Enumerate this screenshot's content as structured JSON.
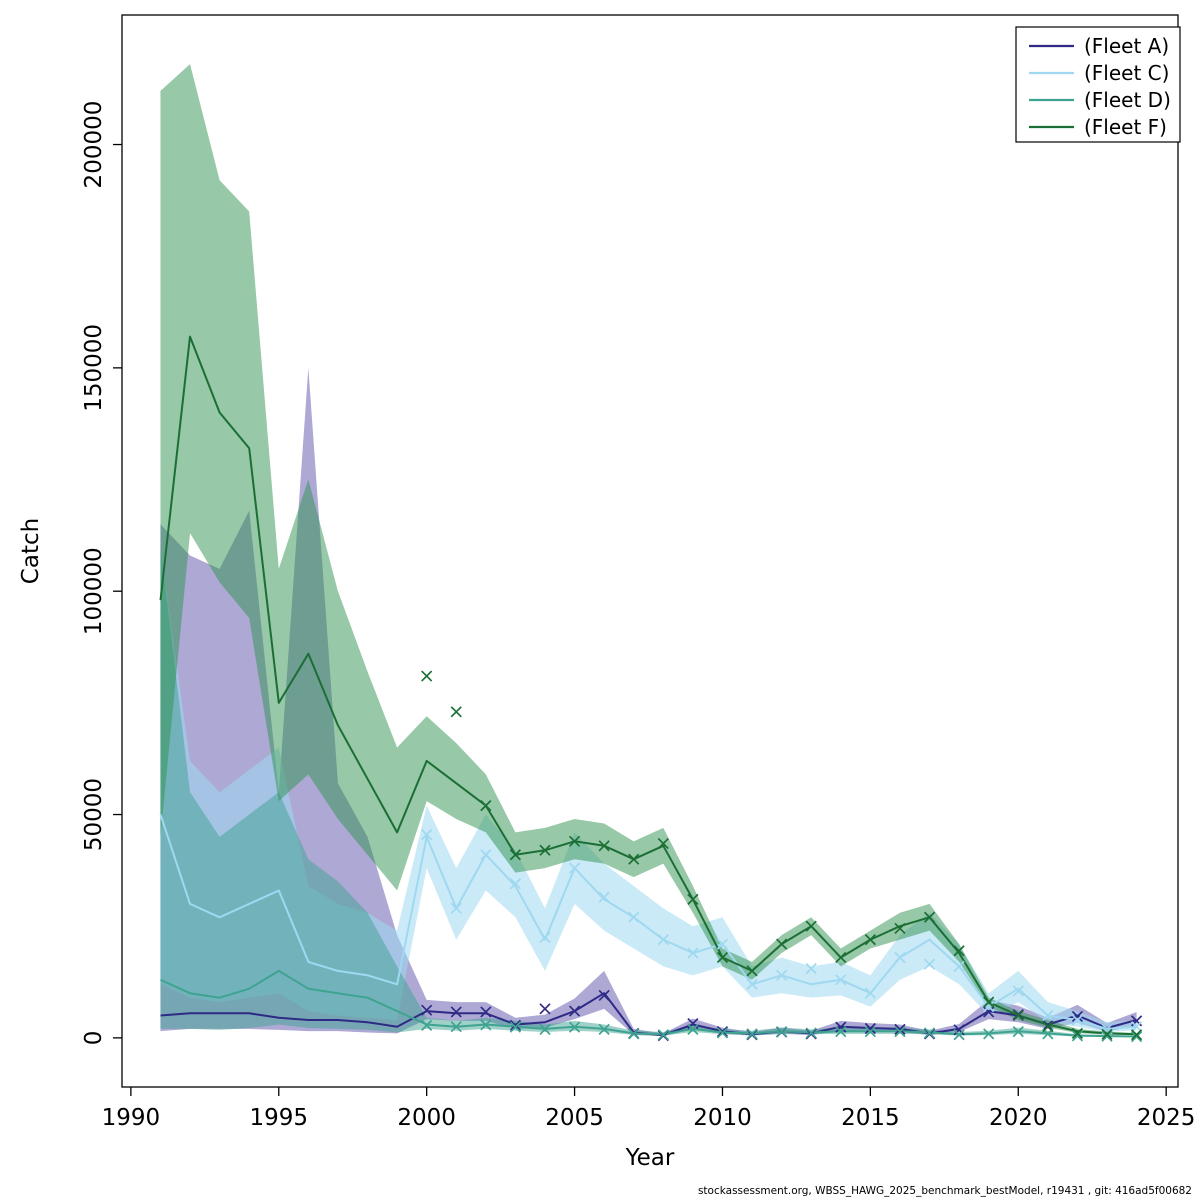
{
  "footer": {
    "text": "stockassessment.org, WBSS_HAWG_2025_benchmark_bestModel, r19431 , git: 416ad5f00682"
  },
  "chart_data": {
    "type": "line",
    "title": "",
    "xlabel": "Year",
    "ylabel": "Catch",
    "grid": false,
    "legend_position": "top-right",
    "axes": {
      "xlim": [
        1989.7,
        2025.4
      ],
      "ylim": [
        -11000,
        229000
      ],
      "xticks": [
        1990,
        1995,
        2000,
        2005,
        2010,
        2015,
        2020,
        2025
      ],
      "yticks": [
        0,
        50000,
        100000,
        150000,
        200000
      ]
    },
    "years": [
      1991,
      1992,
      1993,
      1994,
      1995,
      1996,
      1997,
      1998,
      1999,
      2000,
      2001,
      2002,
      2003,
      2004,
      2005,
      2006,
      2007,
      2008,
      2009,
      2010,
      2011,
      2012,
      2013,
      2014,
      2015,
      2016,
      2017,
      2018,
      2019,
      2020,
      2021,
      2022,
      2023,
      2024
    ],
    "series": [
      {
        "id": "fleet-a",
        "name": "(Fleet A)",
        "color": "#2e2a85",
        "band_color": "#4a3f9f",
        "band_opacity": 0.45,
        "values": [
          5000,
          5500,
          5500,
          5500,
          4500,
          4000,
          4000,
          3500,
          2500,
          6000,
          5500,
          5500,
          3000,
          3500,
          6000,
          10000,
          1200,
          600,
          3000,
          1500,
          800,
          1500,
          1000,
          2500,
          2200,
          2000,
          1000,
          2000,
          6000,
          5000,
          3000,
          5000,
          2200,
          4000
        ],
        "lower": [
          1500,
          2000,
          2000,
          2000,
          1800,
          1500,
          1500,
          1200,
          1000,
          4200,
          3800,
          3800,
          2000,
          2300,
          4200,
          6500,
          700,
          350,
          2000,
          900,
          500,
          900,
          600,
          1600,
          1500,
          1300,
          600,
          1300,
          4200,
          3500,
          2000,
          3400,
          1400,
          2700
        ],
        "upper": [
          115000,
          108000,
          105000,
          118000,
          55000,
          150000,
          57000,
          45000,
          23000,
          8500,
          8000,
          8000,
          4500,
          5200,
          8800,
          15000,
          2000,
          1000,
          4300,
          2300,
          1300,
          2300,
          1600,
          3800,
          3300,
          3000,
          1600,
          3100,
          8500,
          7200,
          4500,
          7400,
          3300,
          5800
        ],
        "obs": [
          null,
          null,
          null,
          null,
          null,
          null,
          null,
          null,
          null,
          6200,
          5800,
          5800,
          2800,
          6500,
          6000,
          9500,
          1000,
          500,
          3200,
          1400,
          700,
          1300,
          900,
          2400,
          2100,
          1900,
          900,
          1800,
          5800,
          5200,
          2800,
          4800,
          2000,
          3800
        ]
      },
      {
        "id": "fleet-c",
        "name": "(Fleet C)",
        "color": "#9fd8f0",
        "band_color": "#9fd8f0",
        "band_opacity": 0.55,
        "values": [
          50000,
          30000,
          27000,
          30000,
          33000,
          17000,
          15000,
          14000,
          12000,
          45000,
          29000,
          41000,
          34000,
          22000,
          38000,
          31000,
          27000,
          22000,
          19000,
          21000,
          12000,
          14000,
          12000,
          13000,
          10000,
          18000,
          22000,
          16000,
          7000,
          11000,
          5000,
          4000,
          2000,
          2500
        ],
        "lower": [
          12000,
          9000,
          8000,
          9000,
          10000,
          6000,
          5000,
          4500,
          4000,
          38000,
          22000,
          33000,
          27000,
          15000,
          30000,
          24000,
          20000,
          16000,
          14000,
          16000,
          9000,
          10000,
          9000,
          9500,
          7000,
          13000,
          16000,
          12000,
          5000,
          8000,
          3500,
          2500,
          1300,
          1700
        ],
        "upper": [
          110000,
          62000,
          55000,
          60000,
          65000,
          34000,
          30000,
          28000,
          24000,
          52000,
          38000,
          50000,
          42000,
          29000,
          46000,
          39000,
          34000,
          29000,
          25000,
          27000,
          16000,
          18000,
          16000,
          17000,
          14000,
          23000,
          28000,
          21000,
          10000,
          15000,
          8000,
          6000,
          3500,
          4000
        ],
        "obs": [
          null,
          null,
          null,
          null,
          null,
          null,
          null,
          null,
          null,
          45500,
          29000,
          41000,
          34500,
          22500,
          38000,
          31500,
          27000,
          22000,
          19000,
          21000,
          12000,
          14000,
          15500,
          13000,
          10000,
          18000,
          16500,
          16000,
          7000,
          10500,
          5000,
          4000,
          2000,
          2500
        ]
      },
      {
        "id": "fleet-d",
        "name": "(Fleet D)",
        "color": "#3fa391",
        "band_color": "#3fa391",
        "band_opacity": 0.5,
        "values": [
          13000,
          10000,
          9000,
          11000,
          15000,
          11000,
          10000,
          9000,
          6000,
          3000,
          2500,
          3000,
          2500,
          2000,
          2500,
          2000,
          1000,
          800,
          2000,
          1200,
          1000,
          1500,
          1200,
          1500,
          1500,
          1500,
          1200,
          800,
          1000,
          1500,
          1000,
          500,
          400,
          300
        ],
        "lower": [
          2000,
          2000,
          1800,
          2200,
          3000,
          2200,
          2000,
          1800,
          1200,
          2000,
          1600,
          2000,
          1600,
          1300,
          1600,
          1300,
          600,
          500,
          1300,
          800,
          600,
          900,
          800,
          900,
          900,
          900,
          800,
          500,
          600,
          900,
          600,
          300,
          250,
          180
        ],
        "upper": [
          110000,
          55000,
          45000,
          50000,
          55000,
          40000,
          35000,
          28000,
          16000,
          4500,
          3800,
          4500,
          3800,
          3000,
          3800,
          3000,
          1600,
          1300,
          3000,
          1900,
          1600,
          2300,
          1900,
          2300,
          2300,
          2300,
          1900,
          1300,
          1600,
          2300,
          1600,
          800,
          650,
          500
        ],
        "obs": [
          null,
          null,
          null,
          null,
          null,
          null,
          null,
          null,
          null,
          2800,
          2500,
          2900,
          2400,
          1900,
          2400,
          1900,
          900,
          700,
          1900,
          1100,
          900,
          1400,
          1100,
          1400,
          1400,
          1400,
          1100,
          700,
          900,
          1400,
          900,
          450,
          350,
          280
        ]
      },
      {
        "id": "fleet-f",
        "name": "(Fleet F)",
        "color": "#1b6f35",
        "band_color": "#2f9150",
        "band_opacity": 0.5,
        "values": [
          98000,
          157000,
          140000,
          132000,
          75000,
          86000,
          70000,
          58000,
          46000,
          62000,
          57000,
          52000,
          41000,
          42000,
          44000,
          43000,
          40000,
          43000,
          31000,
          18000,
          15000,
          21000,
          25000,
          18000,
          22000,
          25000,
          27000,
          19000,
          8000,
          5000,
          3000,
          1500,
          1000,
          800
        ],
        "lower": [
          45000,
          113000,
          102000,
          94000,
          53000,
          59000,
          49000,
          41000,
          33000,
          53000,
          49000,
          46000,
          37000,
          38000,
          40000,
          39000,
          36000,
          39000,
          28000,
          16000,
          13000,
          19000,
          23000,
          16000,
          20000,
          22000,
          24000,
          17000,
          7000,
          4000,
          2300,
          1100,
          700,
          600
        ],
        "upper": [
          212000,
          218000,
          192000,
          185000,
          105000,
          125000,
          100000,
          82000,
          65000,
          72000,
          66000,
          59000,
          46000,
          47000,
          49000,
          48000,
          44000,
          47000,
          34000,
          20000,
          17000,
          23000,
          27000,
          20000,
          24000,
          28000,
          30000,
          21000,
          9000,
          6000,
          4000,
          2000,
          1400,
          1100
        ],
        "obs": [
          null,
          null,
          null,
          null,
          null,
          null,
          null,
          null,
          null,
          81000,
          73000,
          52000,
          41000,
          42000,
          44000,
          43000,
          40000,
          43500,
          31000,
          18000,
          15000,
          21000,
          25000,
          18000,
          22000,
          24500,
          27000,
          19500,
          8000,
          5000,
          2500,
          1000,
          800,
          700
        ]
      }
    ]
  }
}
